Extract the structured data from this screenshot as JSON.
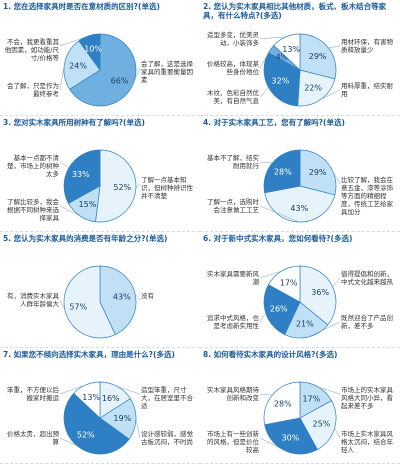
{
  "chart_data": [
    {
      "type": "pie",
      "title": "1. 您在选择家具时是否在意材质的区别?(单选)",
      "categories": [
        "会了解，这是选择家具的重要衡量因素",
        "会了解，只是作为最终参考",
        "不会，我更看重其他因素，如功能/尺寸/价格等"
      ],
      "values": [
        66,
        24,
        10
      ],
      "value_labels": [
        "66%",
        "24%",
        "10%"
      ],
      "colors": [
        "#6fb0e0",
        "#bfe0f5",
        "#2f7fc4"
      ]
    },
    {
      "type": "pie",
      "title": "2. 您认为实木家具相比其他材质，板式、板木结合等家具，有什么特点?(多选)",
      "categories": [
        "用材环保，有害物质释放量少",
        "用料厚重，结实耐用",
        "木纹、色彩自然优美，有自然气息",
        "价格较高，体现某些身份地位",
        "造型多变，优美灵动，小装饰多"
      ],
      "values": [
        29,
        22,
        32,
        4,
        13
      ],
      "value_labels": [
        "29%",
        "22%",
        "32%",
        "4%",
        "13%"
      ],
      "colors": [
        "#bfe0f5",
        "#e6f3fb",
        "#2f7fc4",
        "#6fb0e0",
        "#ffffff"
      ]
    },
    {
      "type": "pie",
      "title": "3. 您对实木家具所用树种有了解吗?(单选)",
      "categories": [
        "了解一点基本知识，但树种辨识性并不清楚",
        "了解比较多，我会根据不同树种来选择家具",
        "基本一点都不清楚，市场上的树种太多"
      ],
      "values": [
        52,
        15,
        33
      ],
      "value_labels": [
        "52%",
        "15%",
        "33%"
      ],
      "colors": [
        "#e6f3fb",
        "#bfe0f5",
        "#2f7fc4"
      ]
    },
    {
      "type": "pie",
      "title": "4. 对于实木家具工艺，您有了解吗?(单选)",
      "categories": [
        "比较了解，我会在意五金、漆等涂饰等方面的精细程度，传统工艺给家具加分",
        "了解一点，选购时会注意做工工艺",
        "基本不了解，结实耐用就行"
      ],
      "values": [
        29,
        43,
        28
      ],
      "value_labels": [
        "29%",
        "43%",
        "28%"
      ],
      "colors": [
        "#bfe0f5",
        "#e6f3fb",
        "#2f7fc4"
      ]
    },
    {
      "type": "pie",
      "title": "5. 您认为实木家具的消费是否有年龄之分?(单选)",
      "categories": [
        "没有",
        "有，消费实木家具人群年龄偏大"
      ],
      "values": [
        43,
        57
      ],
      "value_labels": [
        "43%",
        "57%"
      ],
      "colors": [
        "#bfe0f5",
        "#e6f3fb"
      ]
    },
    {
      "type": "pie",
      "title": "6. 对于新中式实木家具，您如何看待?(多选)",
      "categories": [
        "值得提倡和创新，中式文化越来越热",
        "既然迎合了产品创新，差不多",
        "追求中式风格，也是考虑新实用性",
        "实木家具需要新风潮"
      ],
      "values": [
        36,
        21,
        26,
        17
      ],
      "value_labels": [
        "36%",
        "21%",
        "26%",
        "17%"
      ],
      "colors": [
        "#e6f3fb",
        "#bfe0f5",
        "#2f7fc4",
        "#ffffff"
      ]
    },
    {
      "type": "pie",
      "title": "7. 如果您不倾向选择实木家具，理由是什么?(多选)",
      "categories": [
        "造型笨重，尺寸大，在居室里不合适",
        "设计感较弱，感觉古板沉闷，不时尚",
        "价格太贵，超出预算",
        "笨重，不方便以后搬家时搬运"
      ],
      "values": [
        16,
        19,
        52,
        13
      ],
      "value_labels": [
        "16%",
        "19%",
        "52%",
        "13%"
      ],
      "colors": [
        "#e6f3fb",
        "#bfe0f5",
        "#2f7fc4",
        "#ffffff"
      ]
    },
    {
      "type": "pie",
      "title": "8. 如何看待实木家具的设计风格?(多选)",
      "categories": [
        "市场上的实木家具风格大同小异，看起来差不多",
        "市场上实木家具风格太沉闷，结合年轻人",
        "市场上有一些创新的风格，但是价位较高",
        "实木家具风格期待创新和改变"
      ],
      "values": [
        17,
        25,
        30,
        28
      ],
      "value_labels": [
        "17%",
        "25%",
        "30%",
        "28%"
      ],
      "colors": [
        "#bfe0f5",
        "#e6f3fb",
        "#2f7fc4",
        "#ffffff"
      ]
    }
  ]
}
